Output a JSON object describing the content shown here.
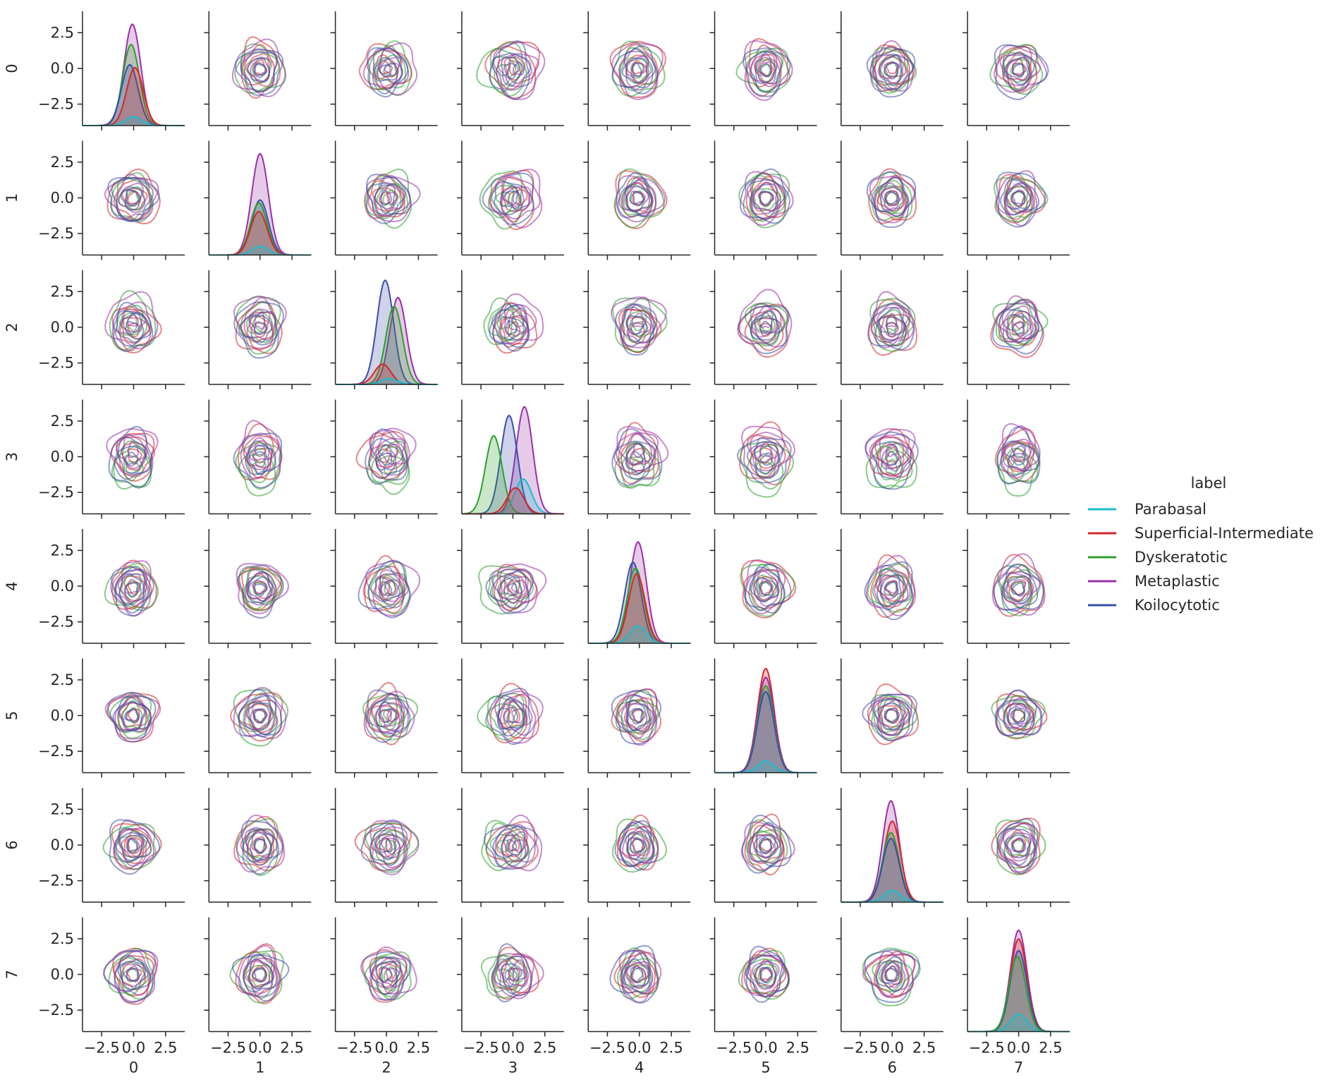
{
  "chart_data": {
    "type": "pairplot",
    "description_kind": "KDE pair grid (diagonal: 1-D density curves, off-diagonal: 2-D density contours)",
    "variables": [
      "0",
      "1",
      "2",
      "3",
      "4",
      "5",
      "6",
      "7"
    ],
    "x_ticks": [
      -2.5,
      0.0,
      2.5
    ],
    "x_tick_labels": [
      "−2.5",
      "0.0",
      "2.5"
    ],
    "y_ticks": [
      2.5,
      0.0,
      -2.5
    ],
    "y_tick_labels": [
      "2.5",
      "0.0",
      "−2.5"
    ],
    "xlim": [
      -4.0,
      4.0
    ],
    "ylim": [
      -4.0,
      4.0
    ],
    "legend": {
      "title": "label",
      "placement": "right",
      "entries": [
        {
          "name": "Parabasal",
          "color": "#17becf"
        },
        {
          "name": "Superficial-Intermediate",
          "color": "#d62728"
        },
        {
          "name": "Dyskeratotic",
          "color": "#2ca02c"
        },
        {
          "name": "Metaplastic",
          "color": "#9b30a8"
        },
        {
          "name": "Koilocytotic",
          "color": "#3a4fa8"
        }
      ]
    },
    "diagonal_peaks": [
      {
        "variable": "0",
        "peaks": [
          {
            "class": "Metaplastic",
            "mean": -0.1,
            "height": 3.5
          },
          {
            "class": "Dyskeratotic",
            "mean": -0.2,
            "height": 2.8
          },
          {
            "class": "Koilocytotic",
            "mean": -0.3,
            "height": 2.1
          },
          {
            "class": "Superficial-Intermediate",
            "mean": 0.1,
            "height": 2.0
          },
          {
            "class": "Parabasal",
            "mean": 0.0,
            "height": 0.3
          }
        ]
      },
      {
        "variable": "1",
        "peaks": [
          {
            "class": "Metaplastic",
            "mean": 0.0,
            "height": 3.5
          },
          {
            "class": "Koilocytotic",
            "mean": 0.0,
            "height": 1.9
          },
          {
            "class": "Dyskeratotic",
            "mean": -0.1,
            "height": 1.8
          },
          {
            "class": "Superficial-Intermediate",
            "mean": -0.1,
            "height": 1.5
          },
          {
            "class": "Parabasal",
            "mean": 0.0,
            "height": 0.3
          }
        ]
      },
      {
        "variable": "2",
        "peaks": [
          {
            "class": "Koilocytotic",
            "mean": -0.1,
            "height": 3.6
          },
          {
            "class": "Metaplastic",
            "mean": 0.9,
            "height": 3.0
          },
          {
            "class": "Dyskeratotic",
            "mean": 0.6,
            "height": 2.7
          },
          {
            "class": "Superficial-Intermediate",
            "mean": -0.3,
            "height": 0.7
          },
          {
            "class": "Parabasal",
            "mean": 0.2,
            "height": 0.2
          }
        ]
      },
      {
        "variable": "3",
        "peaks": [
          {
            "class": "Metaplastic",
            "mean": 0.9,
            "height": 3.7
          },
          {
            "class": "Koilocytotic",
            "mean": -0.3,
            "height": 3.4
          },
          {
            "class": "Dyskeratotic",
            "mean": -1.5,
            "height": 2.7
          },
          {
            "class": "Superficial-Intermediate",
            "mean": 0.2,
            "height": 0.9
          },
          {
            "class": "Parabasal",
            "mean": 0.8,
            "height": 1.2
          }
        ]
      },
      {
        "variable": "4",
        "peaks": [
          {
            "class": "Metaplastic",
            "mean": -0.1,
            "height": 3.5
          },
          {
            "class": "Koilocytotic",
            "mean": -0.5,
            "height": 2.8
          },
          {
            "class": "Dyskeratotic",
            "mean": -0.3,
            "height": 2.6
          },
          {
            "class": "Superficial-Intermediate",
            "mean": -0.2,
            "height": 2.4
          },
          {
            "class": "Parabasal",
            "mean": -0.1,
            "height": 0.6
          }
        ]
      },
      {
        "variable": "5",
        "peaks": [
          {
            "class": "Superficial-Intermediate",
            "mean": 0.0,
            "height": 3.6
          },
          {
            "class": "Metaplastic",
            "mean": 0.0,
            "height": 3.3
          },
          {
            "class": "Dyskeratotic",
            "mean": 0.0,
            "height": 3.0
          },
          {
            "class": "Koilocytotic",
            "mean": 0.0,
            "height": 2.8
          },
          {
            "class": "Parabasal",
            "mean": 0.0,
            "height": 0.4
          }
        ]
      },
      {
        "variable": "6",
        "peaks": [
          {
            "class": "Metaplastic",
            "mean": -0.1,
            "height": 3.5
          },
          {
            "class": "Superficial-Intermediate",
            "mean": 0.0,
            "height": 2.8
          },
          {
            "class": "Dyskeratotic",
            "mean": -0.1,
            "height": 2.4
          },
          {
            "class": "Koilocytotic",
            "mean": -0.1,
            "height": 2.2
          },
          {
            "class": "Parabasal",
            "mean": 0.0,
            "height": 0.4
          }
        ]
      },
      {
        "variable": "7",
        "peaks": [
          {
            "class": "Metaplastic",
            "mean": 0.0,
            "height": 3.5
          },
          {
            "class": "Superficial-Intermediate",
            "mean": 0.0,
            "height": 3.2
          },
          {
            "class": "Koilocytotic",
            "mean": 0.0,
            "height": 2.8
          },
          {
            "class": "Dyskeratotic",
            "mean": -0.1,
            "height": 2.6
          },
          {
            "class": "Parabasal",
            "mean": 0.0,
            "height": 0.6
          }
        ]
      }
    ]
  }
}
